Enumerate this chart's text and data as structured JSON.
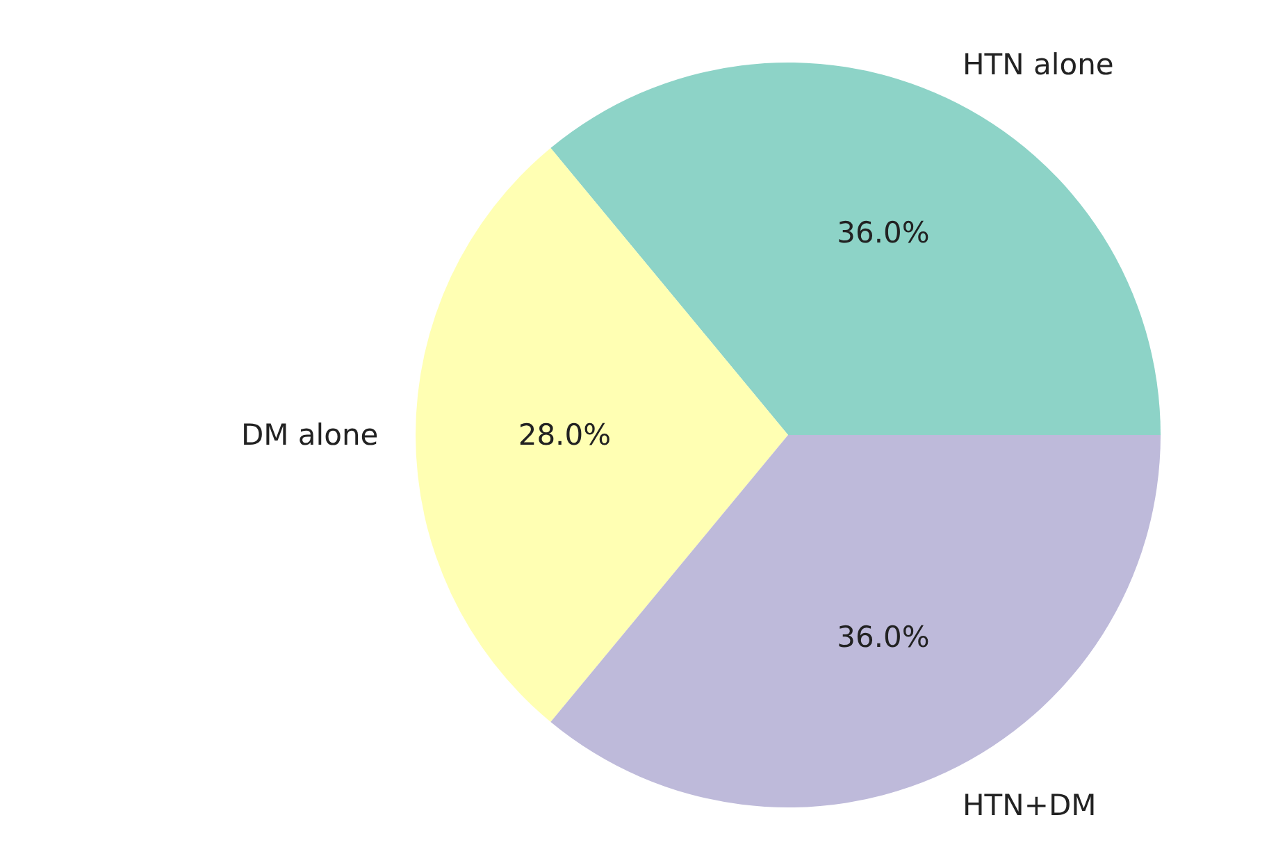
{
  "chart_data": {
    "type": "pie",
    "categories": [
      "HTN alone",
      "DM alone",
      "HTN+DM"
    ],
    "values": [
      36,
      28,
      36
    ],
    "colors": [
      "#8dd3c7",
      "#ffffb3",
      "#bebada"
    ],
    "value_labels": [
      "36.0%",
      "28.0%",
      "36.0%"
    ],
    "legend": false
  }
}
